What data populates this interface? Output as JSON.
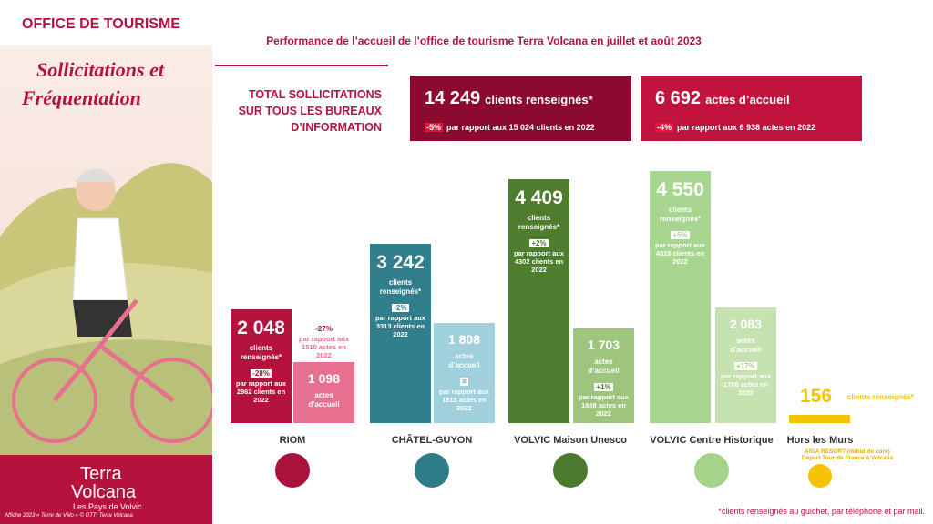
{
  "header": {
    "office": "OFFICE DE TOURISME",
    "title_line1": "Sollicitations et",
    "title_line2": "Fréquentation",
    "brand1": "Terra",
    "brand2": "Volcana",
    "brand_sub": "Les Pays de Volvic",
    "credit": "Affiche 2023 « Terre de Vélo » © OTTI Terra Volcana"
  },
  "chart_data": {
    "type": "bar",
    "title": "Performance de l’accueil de l’office de tourisme Terra Volcana en juillet et août 2023",
    "total_label": [
      "TOTAL SOLLICITATIONS",
      "SUR TOUS LES BUREAUX",
      "D’INFORMATION"
    ],
    "totals": [
      {
        "value": 14249,
        "label": "14 249",
        "unit": "clients renseignés*",
        "change": "-5%",
        "compare": "par rapport aux 15 024 clients  en 2022",
        "color": "#8c0a2f"
      },
      {
        "value": 6692,
        "label": "6 692",
        "unit": "actes d’accueil",
        "change": "-4%",
        "compare": "par rapport aux 6 938 actes en 2022",
        "color": "#c2133f"
      }
    ],
    "categories": [
      "RIOM",
      "CHÂTEL-GUYON",
      "VOLVIC Maison Unesco",
      "VOLVIC Centre Historique",
      "Hors les Murs"
    ],
    "category_colors": [
      "#a8123c",
      "#2e7c8a",
      "#4a7a2c",
      "#a6d38a",
      "#f5c400"
    ],
    "series": [
      {
        "name": "clients renseignés*",
        "colors": [
          "#b5123e",
          "#317f8c",
          "#4e7d2e",
          "#a8d58f",
          "#f5c400"
        ],
        "values": [
          2048,
          3242,
          4409,
          4550,
          156
        ],
        "value_labels": [
          "2 048",
          "3 242",
          "4 409",
          "4 550",
          "156"
        ],
        "changes": [
          "-28%",
          "-2%",
          "+2%",
          "+5%",
          null
        ],
        "compare": [
          "par rapport aux 2862 clients en 2022",
          "par rapport aux 3313 clients en 2022",
          "par rapport aux 4302 clients en 2022",
          "par rapport aux 4326 clients en 2022",
          null
        ]
      },
      {
        "name": "actes d’accueil",
        "colors": [
          "#e8708f",
          "#9fd0dc",
          "#9dc57e",
          "#c5e2b0",
          null
        ],
        "values": [
          1098,
          1808,
          1703,
          2083,
          null
        ],
        "value_labels": [
          "1 098",
          "1 808",
          "1 703",
          "2 083",
          null
        ],
        "changes": [
          "-27%",
          "=",
          "+1%",
          "+17%",
          null
        ],
        "compare": [
          "par rapport aux 1510 actes en 2022",
          "par rapport aux 1815 actes en 2022",
          "par rapport aux 1688 actes en 2022",
          "par rapport aux 1786 actes en 2022",
          null
        ]
      }
    ],
    "hors_note": "AÏGA RESORT (début de cure) Départ Tour de France à Volcalia",
    "footnote": "*clients renseignés au guichet, par téléphone et par mail."
  }
}
